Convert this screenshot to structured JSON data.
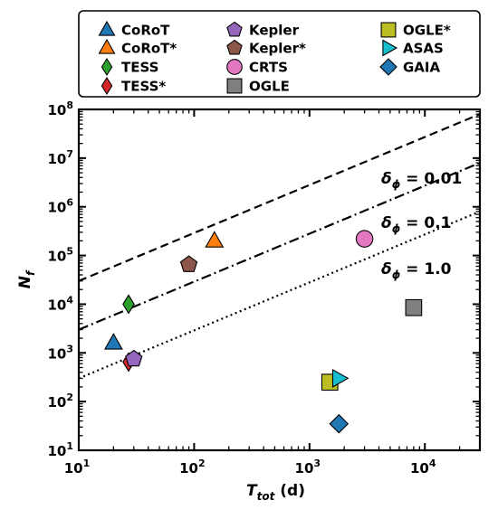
{
  "chart_data": {
    "type": "scatter",
    "xlabel": {
      "main": "T",
      "sub": "tot",
      "suffix": " (d)"
    },
    "ylabel": {
      "main": "N",
      "sub": "f"
    },
    "xscale": "log",
    "yscale": "log",
    "xlim": [
      10,
      30000
    ],
    "ylim": [
      10,
      100000000
    ],
    "x_ticks": [
      {
        "value": 10,
        "base": "10",
        "exp": "1"
      },
      {
        "value": 100,
        "base": "10",
        "exp": "2"
      },
      {
        "value": 1000,
        "base": "10",
        "exp": "3"
      },
      {
        "value": 10000,
        "base": "10",
        "exp": "4"
      }
    ],
    "y_ticks": [
      {
        "value": 10,
        "base": "10",
        "exp": "1"
      },
      {
        "value": 100,
        "base": "10",
        "exp": "2"
      },
      {
        "value": 1000,
        "base": "10",
        "exp": "3"
      },
      {
        "value": 10000,
        "base": "10",
        "exp": "4"
      },
      {
        "value": 100000,
        "base": "10",
        "exp": "5"
      },
      {
        "value": 1000000,
        "base": "10",
        "exp": "6"
      },
      {
        "value": 10000000,
        "base": "10",
        "exp": "7"
      },
      {
        "value": 100000000,
        "base": "10",
        "exp": "8"
      }
    ],
    "grid": false,
    "legend_position": "top",
    "series": [
      {
        "name": "CoRoT",
        "marker": "triangle-up",
        "color": "#1f77b4",
        "x": 20,
        "y": 1600
      },
      {
        "name": "CoRoT*",
        "marker": "triangle-up",
        "color": "#ff7f0e",
        "x": 150,
        "y": 200000
      },
      {
        "name": "TESS",
        "marker": "thin-diamond",
        "color": "#2ca02c",
        "x": 27,
        "y": 10000
      },
      {
        "name": "TESS*",
        "marker": "thin-diamond",
        "color": "#d62728",
        "x": 27,
        "y": 650
      },
      {
        "name": "Kepler",
        "marker": "pentagon",
        "color": "#9467bd",
        "x": 30,
        "y": 750
      },
      {
        "name": "Kepler*",
        "marker": "pentagon",
        "color": "#8c564b",
        "x": 90,
        "y": 65000
      },
      {
        "name": "CRTS",
        "marker": "circle",
        "color": "#e377c2",
        "x": 3000,
        "y": 220000
      },
      {
        "name": "OGLE",
        "marker": "square",
        "color": "#7f7f7f",
        "x": 8000,
        "y": 8500
      },
      {
        "name": "OGLE*",
        "marker": "square",
        "color": "#bcbd22",
        "x": 1500,
        "y": 250
      },
      {
        "name": "ASAS",
        "marker": "triangle-right",
        "color": "#17becf",
        "x": 1800,
        "y": 300
      },
      {
        "name": "GAIA",
        "marker": "diamond",
        "color": "#1f77b4",
        "x": 1800,
        "y": 35
      }
    ],
    "reference_lines": [
      {
        "label_main": "δ",
        "label_sub": "ϕ",
        "label_value": " = 0.01",
        "style": "dashed",
        "points": [
          [
            10,
            30000
          ],
          [
            30000,
            80000000
          ]
        ]
      },
      {
        "label_main": "δ",
        "label_sub": "ϕ",
        "label_value": " = 0.1",
        "style": "dashdot",
        "points": [
          [
            10,
            3000
          ],
          [
            30000,
            8000000
          ]
        ]
      },
      {
        "label_main": "δ",
        "label_sub": "ϕ",
        "label_value": " = 1.0",
        "style": "dotted",
        "points": [
          [
            10,
            300
          ],
          [
            30000,
            800000
          ]
        ]
      }
    ]
  }
}
